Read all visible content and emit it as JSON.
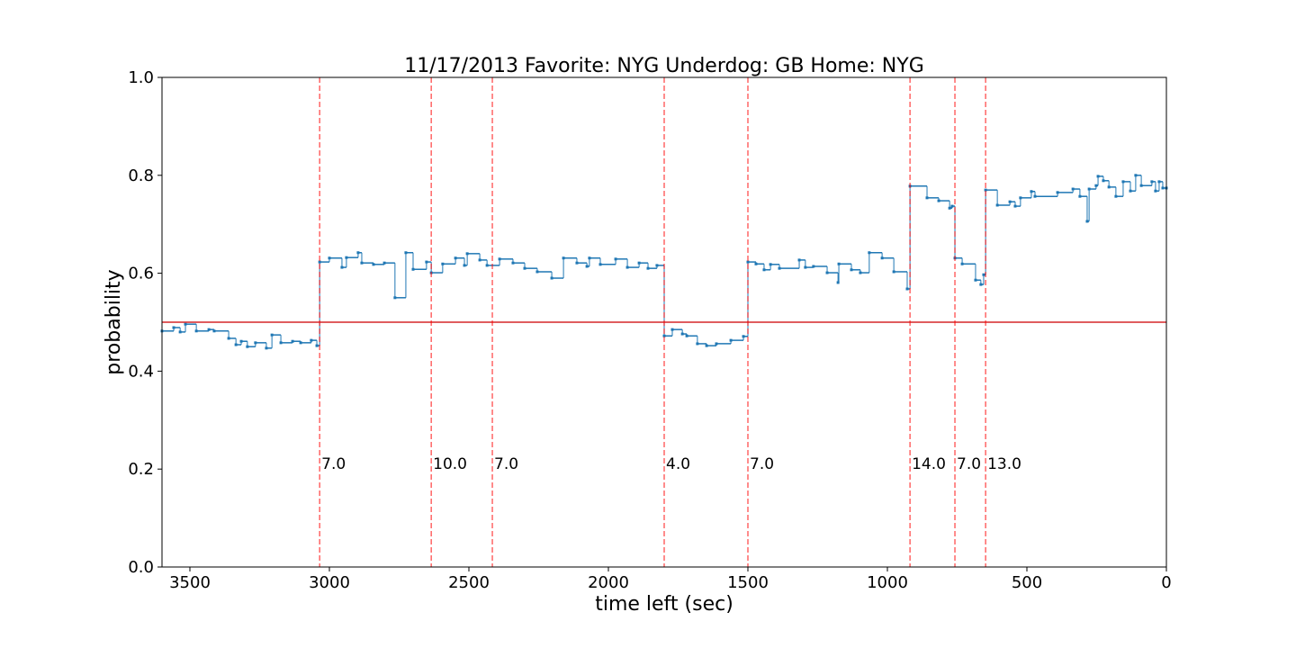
{
  "chart_data": {
    "type": "step",
    "title": "11/17/2013 Favorite: NYG Underdog: GB Home: NYG",
    "xlabel": "time left (sec)",
    "ylabel": "probability",
    "xlim": [
      3600,
      0
    ],
    "xticks": [
      3500,
      3000,
      2500,
      2000,
      1500,
      1000,
      500,
      0
    ],
    "ylim": [
      0,
      1
    ],
    "yticks": [
      {
        "value": 0,
        "label": "0.0"
      },
      {
        "value": 0.2,
        "label": "0.2"
      },
      {
        "value": 0.4,
        "label": "0.4"
      },
      {
        "value": 0.6,
        "label": "0.6"
      },
      {
        "value": 0.8,
        "label": "0.8"
      },
      {
        "value": 1,
        "label": "1.0"
      }
    ],
    "x": [
      3600,
      3558,
      3535,
      3516,
      3477,
      3432,
      3413,
      3361,
      3335,
      3316,
      3294,
      3265,
      3226,
      3206,
      3174,
      3132,
      3103,
      3065,
      3045,
      3035,
      3000,
      2955,
      2939,
      2897,
      2884,
      2842,
      2803,
      2765,
      2726,
      2700,
      2652,
      2635,
      2594,
      2548,
      2516,
      2506,
      2461,
      2435,
      2390,
      2342,
      2300,
      2255,
      2203,
      2161,
      2113,
      2077,
      2068,
      2029,
      1974,
      1932,
      1890,
      1858,
      1826,
      1800,
      1771,
      1735,
      1719,
      1681,
      1648,
      1613,
      1561,
      1516,
      1500,
      1471,
      1442,
      1419,
      1387,
      1316,
      1294,
      1265,
      1216,
      1177,
      1174,
      1129,
      1097,
      1065,
      1019,
      977,
      929,
      919,
      858,
      816,
      777,
      768,
      758,
      732,
      684,
      665,
      655,
      648,
      606,
      561,
      542,
      523,
      484,
      471,
      390,
      335,
      310,
      284,
      277,
      252,
      245,
      226,
      206,
      181,
      155,
      129,
      110,
      90,
      52,
      39,
      26,
      13,
      0
    ],
    "series": [
      {
        "color": "#1f77b4",
        "values": [
          0.482,
          0.489,
          0.48,
          0.496,
          0.482,
          0.485,
          0.482,
          0.467,
          0.454,
          0.461,
          0.45,
          0.458,
          0.447,
          0.474,
          0.458,
          0.461,
          0.458,
          0.463,
          0.452,
          0.623,
          0.631,
          0.612,
          0.632,
          0.642,
          0.621,
          0.618,
          0.621,
          0.55,
          0.642,
          0.608,
          0.623,
          0.601,
          0.619,
          0.631,
          0.616,
          0.64,
          0.627,
          0.616,
          0.629,
          0.621,
          0.61,
          0.603,
          0.59,
          0.631,
          0.621,
          0.614,
          0.631,
          0.618,
          0.629,
          0.612,
          0.621,
          0.61,
          0.616,
          0.472,
          0.485,
          0.476,
          0.472,
          0.456,
          0.452,
          0.456,
          0.463,
          0.471,
          0.623,
          0.619,
          0.607,
          0.618,
          0.61,
          0.627,
          0.612,
          0.614,
          0.601,
          0.581,
          0.619,
          0.607,
          0.601,
          0.642,
          0.631,
          0.603,
          0.568,
          0.778,
          0.754,
          0.748,
          0.733,
          0.737,
          0.631,
          0.619,
          0.586,
          0.577,
          0.597,
          0.77,
          0.739,
          0.746,
          0.737,
          0.754,
          0.767,
          0.757,
          0.765,
          0.772,
          0.757,
          0.706,
          0.772,
          0.779,
          0.798,
          0.789,
          0.776,
          0.757,
          0.787,
          0.768,
          0.8,
          0.779,
          0.787,
          0.768,
          0.787,
          0.774,
          0.774
        ]
      }
    ],
    "hline": {
      "y": 0.5,
      "color": "#d62728"
    },
    "vline_color": "#ff0000",
    "vlines": [
      {
        "x": 3035,
        "label": "7.0"
      },
      {
        "x": 2635,
        "label": "10.0"
      },
      {
        "x": 2416,
        "label": "7.0"
      },
      {
        "x": 1800,
        "label": "4.0"
      },
      {
        "x": 1500,
        "label": "7.0"
      },
      {
        "x": 919,
        "label": "14.0"
      },
      {
        "x": 758,
        "label": "7.0"
      },
      {
        "x": 648,
        "label": "13.0"
      }
    ],
    "vline_label_y": 0.2
  }
}
